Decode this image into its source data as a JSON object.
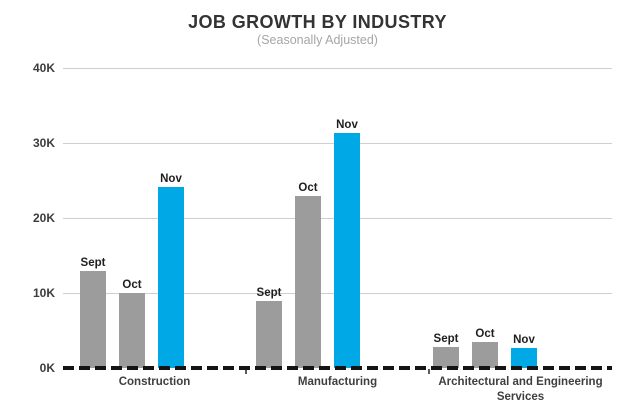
{
  "chart_data": {
    "type": "bar",
    "title": "JOB GROWTH BY INDUSTRY",
    "subtitle": "(Seasonally Adjusted)",
    "categories": [
      "Construction",
      "Manufacturing",
      "Architectural and Engineering Services"
    ],
    "series": [
      {
        "name": "Sept",
        "values": [
          13.0,
          9.0,
          2.8
        ],
        "color": "#9c9c9c"
      },
      {
        "name": "Oct",
        "values": [
          10.0,
          23.0,
          3.5
        ],
        "color": "#9c9c9c"
      },
      {
        "name": "Nov",
        "values": [
          24.1,
          31.3,
          2.7
        ],
        "color": "#00a9e6"
      }
    ],
    "unit": "K",
    "ylim": [
      0,
      40
    ],
    "ytick_step": 10,
    "yticks": [
      "0K",
      "10K",
      "20K",
      "30K",
      "40K"
    ],
    "grid": true,
    "legend": false,
    "bar_labels": true,
    "zero_line_style": "dashed-black"
  },
  "colors": {
    "bar_gray": "#9c9c9c",
    "bar_blue": "#00a9e6",
    "gridline": "#cfcfcf",
    "zero_line": "#141414",
    "title_text": "#333333",
    "subtitle_text": "#a5a5a5",
    "axis_text": "#3c3c3c"
  }
}
